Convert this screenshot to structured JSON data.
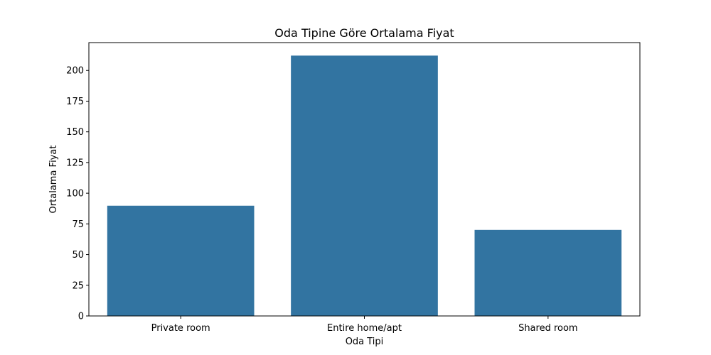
{
  "chart_data": {
    "type": "bar",
    "title": "Oda Tipine Göre Ortalama Fiyat",
    "xlabel": "Oda Tipi",
    "ylabel": "Ortalama Fiyat",
    "categories": [
      "Private room",
      "Entire home/apt",
      "Shared room"
    ],
    "values": [
      89.8,
      212.1,
      70.1
    ],
    "ylim": [
      0,
      222.7
    ],
    "yticks": [
      0,
      25,
      50,
      75,
      100,
      125,
      150,
      175,
      200
    ],
    "bar_color": "#3274a1",
    "grid": false,
    "legend": "none"
  }
}
